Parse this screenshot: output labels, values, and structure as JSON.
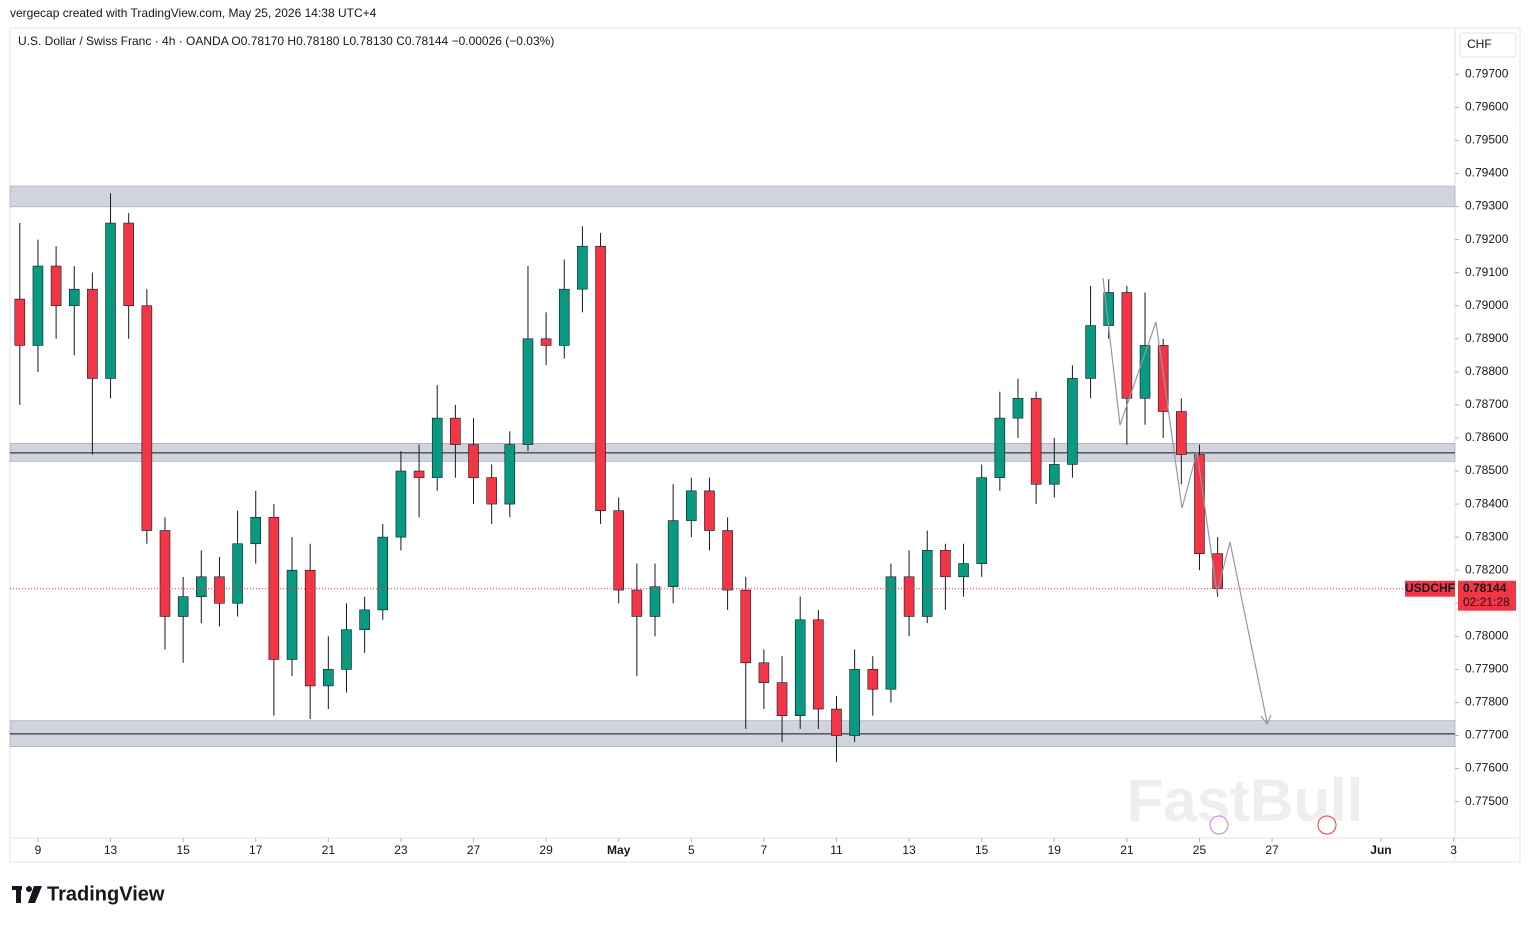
{
  "page": {
    "credit": "vergecap created with TradingView.com, May 25, 2026 14:38 UTC+4",
    "legend": "U.S. Dollar / Swiss Franc · 4h · OANDA  O0.78170 H0.78180 L0.78130 C0.78144 −0.00026 (−0.03%)",
    "logo": "TradingView",
    "watermark": "FastBull"
  },
  "chart_data": {
    "type": "candlestick",
    "currency": "CHF",
    "up_color": "#089981",
    "down_color": "#f23645",
    "grid": false,
    "x": [
      -0.5,
      0,
      0.5,
      1,
      1.5,
      2,
      2.5,
      3,
      3.5,
      4,
      4.5,
      5,
      5.5,
      6,
      6.5,
      7,
      7.5,
      8,
      8.5,
      9,
      9.5,
      10,
      10.5,
      11,
      11.5,
      12,
      12.5,
      13,
      13.5,
      14,
      14.5,
      15,
      15.5,
      16,
      16.5,
      17,
      17.5,
      18,
      18.5,
      19,
      19.5,
      20,
      20.5,
      21,
      21.5,
      22,
      22.5,
      23,
      23.5,
      24,
      24.5,
      25,
      25.5,
      26,
      26.5,
      27,
      27.5,
      28,
      28.5,
      29,
      29.5,
      30,
      30.5,
      31,
      31.5,
      32,
      32.5
    ],
    "open": [
      0.7902,
      0.7888,
      0.7912,
      0.79,
      0.7905,
      0.7878,
      0.7925,
      0.79,
      0.7832,
      0.7806,
      0.7812,
      0.7818,
      0.781,
      0.7828,
      0.7836,
      0.7793,
      0.782,
      0.7785,
      0.779,
      0.7802,
      0.7808,
      0.783,
      0.785,
      0.7848,
      0.7866,
      0.7858,
      0.7848,
      0.784,
      0.7858,
      0.789,
      0.7888,
      0.7905,
      0.7918,
      0.7838,
      0.7814,
      0.7806,
      0.7815,
      0.7835,
      0.7844,
      0.7832,
      0.7814,
      0.7792,
      0.7786,
      0.7776,
      0.7805,
      0.7778,
      0.777,
      0.779,
      0.7784,
      0.7818,
      0.7806,
      0.7826,
      0.7818,
      0.7822,
      0.7848,
      0.7866,
      0.7872,
      0.7846,
      0.7852,
      0.7878,
      0.7894,
      0.7904,
      0.7872,
      0.7888,
      0.7868,
      0.7855,
      0.7825
    ],
    "high": [
      0.7925,
      0.792,
      0.7918,
      0.7912,
      0.791,
      0.7934,
      0.7928,
      0.7905,
      0.7836,
      0.7818,
      0.7826,
      0.7824,
      0.7838,
      0.7844,
      0.784,
      0.783,
      0.7828,
      0.78,
      0.781,
      0.7812,
      0.7834,
      0.7856,
      0.7858,
      0.7876,
      0.787,
      0.7866,
      0.7852,
      0.7862,
      0.7912,
      0.7898,
      0.7914,
      0.7924,
      0.7922,
      0.7842,
      0.7822,
      0.7822,
      0.7846,
      0.7848,
      0.7848,
      0.7836,
      0.7818,
      0.7796,
      0.7794,
      0.7812,
      0.7808,
      0.7782,
      0.7796,
      0.7794,
      0.7822,
      0.7826,
      0.7832,
      0.7828,
      0.7828,
      0.7852,
      0.7874,
      0.7878,
      0.7874,
      0.786,
      0.7882,
      0.7906,
      0.7908,
      0.7906,
      0.7904,
      0.789,
      0.7872,
      0.7858,
      0.783
    ],
    "low": [
      0.787,
      0.788,
      0.789,
      0.7885,
      0.7855,
      0.7872,
      0.789,
      0.7828,
      0.7796,
      0.7792,
      0.7804,
      0.7803,
      0.7806,
      0.7822,
      0.7776,
      0.7788,
      0.7775,
      0.7778,
      0.7783,
      0.7795,
      0.7805,
      0.7826,
      0.7836,
      0.7844,
      0.7848,
      0.784,
      0.7834,
      0.7836,
      0.7856,
      0.7882,
      0.7884,
      0.7898,
      0.7834,
      0.781,
      0.7788,
      0.78,
      0.781,
      0.783,
      0.7826,
      0.7808,
      0.7772,
      0.7778,
      0.7768,
      0.7772,
      0.7772,
      0.7762,
      0.7768,
      0.7776,
      0.778,
      0.78,
      0.7804,
      0.7808,
      0.7812,
      0.7818,
      0.7844,
      0.786,
      0.784,
      0.7842,
      0.7848,
      0.7872,
      0.789,
      0.7858,
      0.7864,
      0.786,
      0.7846,
      0.782,
      0.7812
    ],
    "close": [
      0.7888,
      0.7912,
      0.79,
      0.7905,
      0.7878,
      0.7925,
      0.79,
      0.7832,
      0.7806,
      0.7812,
      0.7818,
      0.781,
      0.7828,
      0.7836,
      0.7793,
      0.782,
      0.7785,
      0.779,
      0.7802,
      0.7808,
      0.783,
      0.785,
      0.7848,
      0.7866,
      0.7858,
      0.7848,
      0.784,
      0.7858,
      0.789,
      0.7888,
      0.7905,
      0.7918,
      0.7838,
      0.7814,
      0.7806,
      0.7815,
      0.7835,
      0.7844,
      0.7832,
      0.7814,
      0.7792,
      0.7786,
      0.7776,
      0.7805,
      0.7778,
      0.777,
      0.779,
      0.7784,
      0.7818,
      0.7806,
      0.7826,
      0.7818,
      0.7822,
      0.7848,
      0.7866,
      0.7872,
      0.7846,
      0.7852,
      0.7878,
      0.7894,
      0.7904,
      0.7872,
      0.7888,
      0.7868,
      0.7855,
      0.7825,
      0.78144
    ],
    "xlim": [
      -0.77,
      39.04
    ],
    "xticks": [
      {
        "value": 0,
        "label": "9"
      },
      {
        "value": 2,
        "label": "13"
      },
      {
        "value": 4,
        "label": "15"
      },
      {
        "value": 6,
        "label": "17"
      },
      {
        "value": 8,
        "label": "21"
      },
      {
        "value": 10,
        "label": "23"
      },
      {
        "value": 12,
        "label": "27"
      },
      {
        "value": 14,
        "label": "29"
      },
      {
        "value": 16,
        "label": "May"
      },
      {
        "value": 18,
        "label": "5"
      },
      {
        "value": 20,
        "label": "7"
      },
      {
        "value": 22,
        "label": "11"
      },
      {
        "value": 24,
        "label": "13"
      },
      {
        "value": 26,
        "label": "15"
      },
      {
        "value": 28,
        "label": "19"
      },
      {
        "value": 30,
        "label": "21"
      },
      {
        "value": 32,
        "label": "25"
      },
      {
        "value": 34,
        "label": "27"
      },
      {
        "value": 37,
        "label": "Jun"
      },
      {
        "value": 39,
        "label": "3"
      }
    ],
    "ylim": [
      0.7739,
      0.7984
    ],
    "yticks": [
      {
        "value": 0.775,
        "label": "0.77500"
      },
      {
        "value": 0.776,
        "label": "0.77600"
      },
      {
        "value": 0.777,
        "label": "0.77700"
      },
      {
        "value": 0.778,
        "label": "0.77800"
      },
      {
        "value": 0.779,
        "label": "0.77900"
      },
      {
        "value": 0.78,
        "label": "0.78000"
      },
      {
        "value": 0.781,
        "label": "0.78100"
      },
      {
        "value": 0.782,
        "label": "0.78200"
      },
      {
        "value": 0.783,
        "label": "0.78300"
      },
      {
        "value": 0.784,
        "label": "0.78400"
      },
      {
        "value": 0.785,
        "label": "0.78500"
      },
      {
        "value": 0.786,
        "label": "0.78600"
      },
      {
        "value": 0.787,
        "label": "0.78700"
      },
      {
        "value": 0.788,
        "label": "0.78800"
      },
      {
        "value": 0.789,
        "label": "0.78900"
      },
      {
        "value": 0.79,
        "label": "0.79000"
      },
      {
        "value": 0.791,
        "label": "0.79100"
      },
      {
        "value": 0.792,
        "label": "0.79200"
      },
      {
        "value": 0.793,
        "label": "0.79300"
      },
      {
        "value": 0.794,
        "label": "0.79400"
      },
      {
        "value": 0.795,
        "label": "0.79500"
      },
      {
        "value": 0.796,
        "label": "0.79600"
      },
      {
        "value": 0.797,
        "label": "0.79700"
      }
    ],
    "zones": [
      {
        "low": 0.79299,
        "high": 0.79362
      },
      {
        "low": 0.78529,
        "high": 0.78584,
        "line": 0.78555
      },
      {
        "low": 0.77666,
        "high": 0.77745,
        "line": 0.77705
      }
    ],
    "last_price": {
      "symbol": "USDCHF",
      "value": 0.78144,
      "label": "0.78144",
      "countdown": "02:21:28"
    }
  }
}
